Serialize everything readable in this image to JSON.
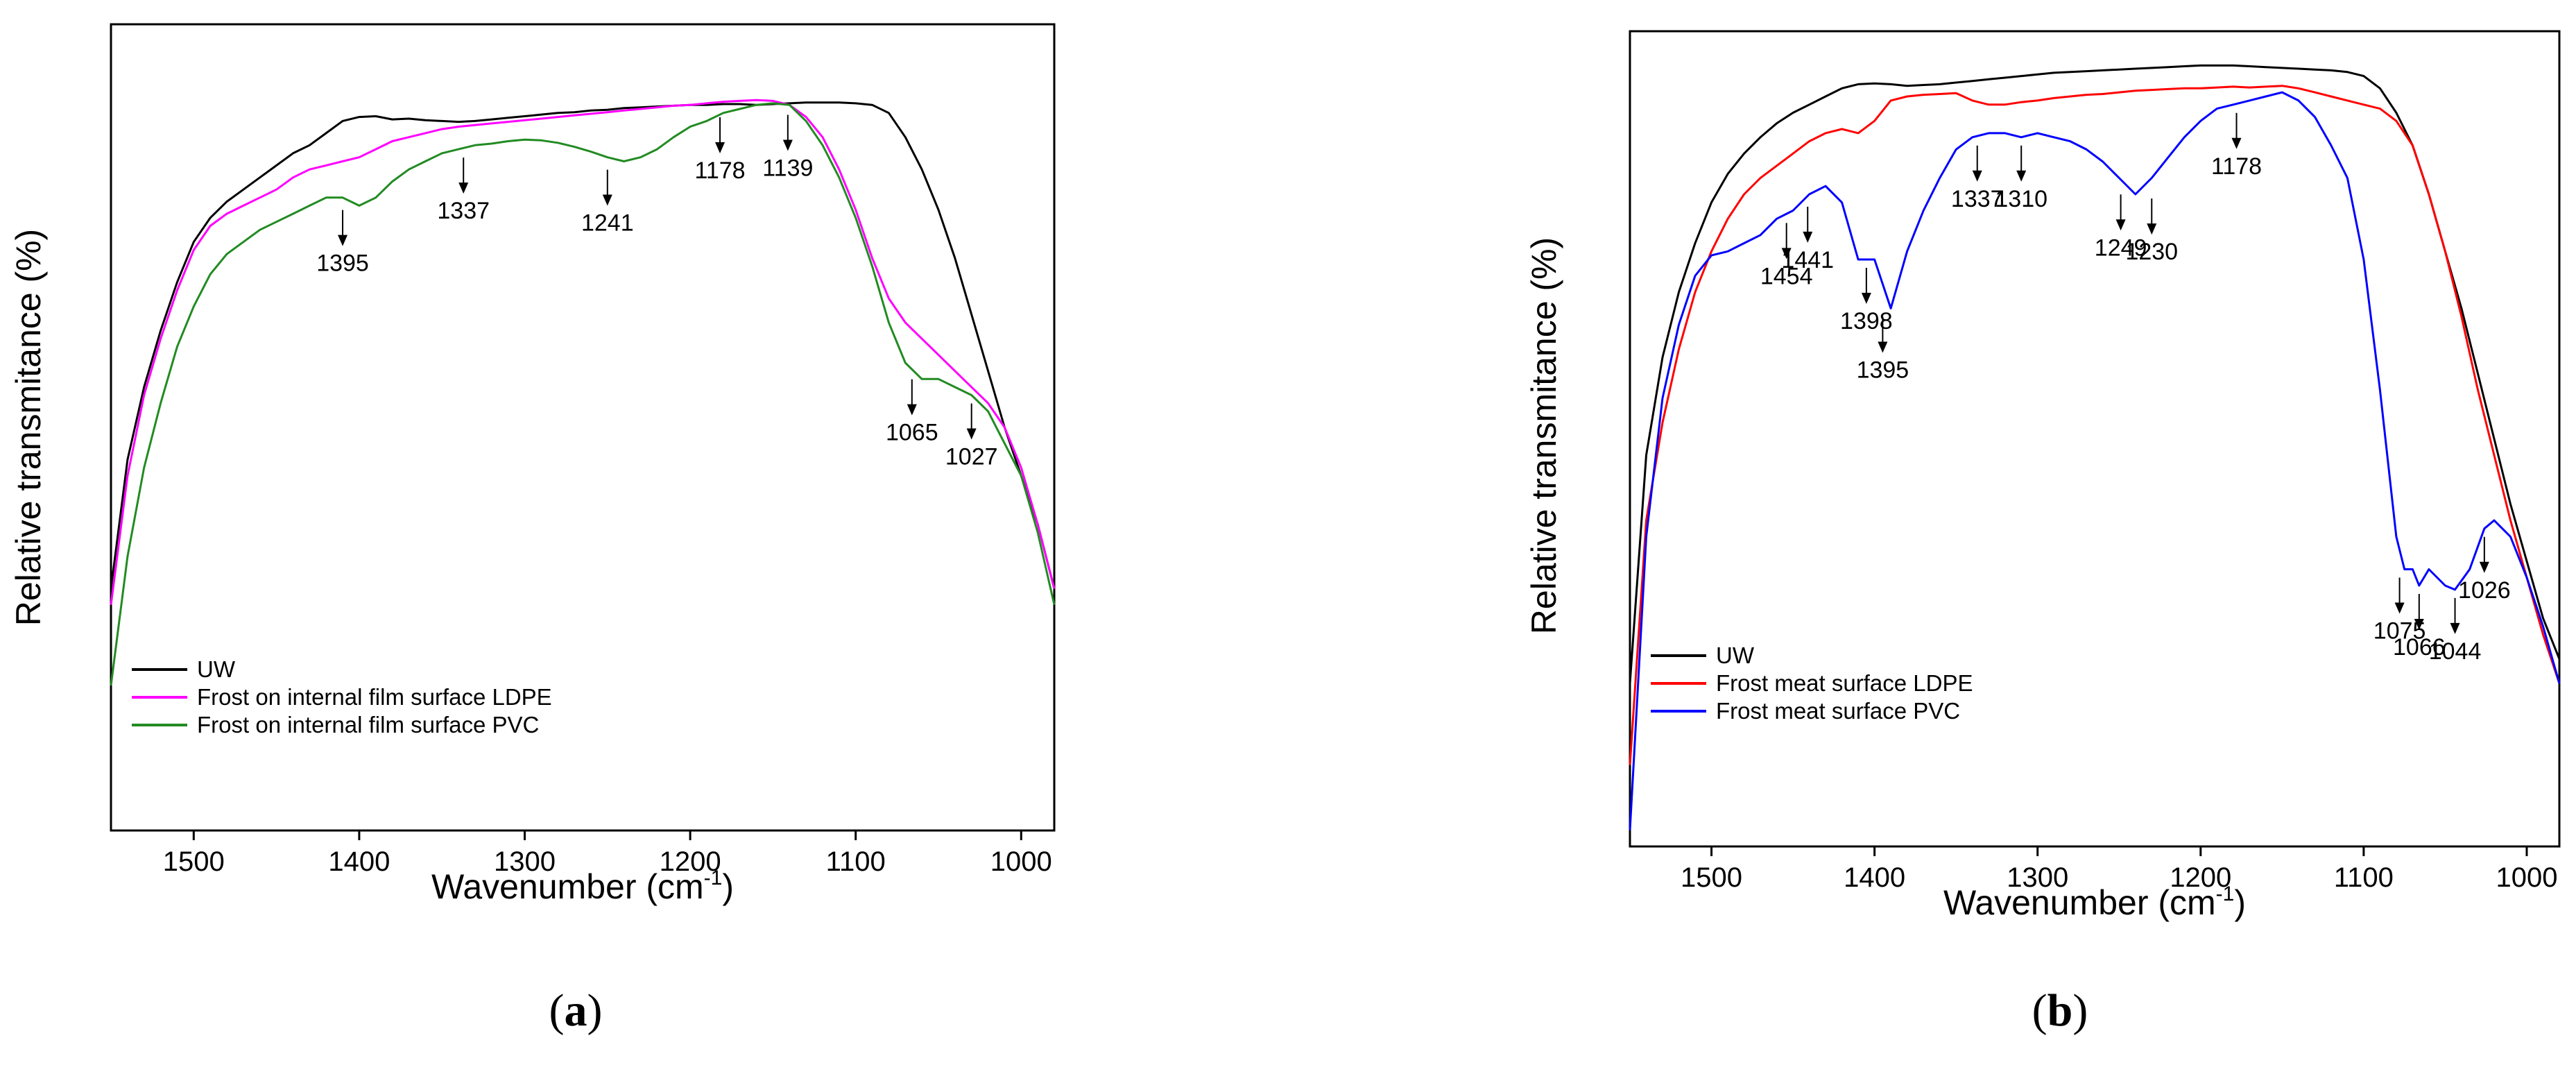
{
  "chart_data": [
    {
      "type": "line",
      "panel": "a",
      "panel_label": {
        "open": "(",
        "letter": "a",
        "close": ")"
      },
      "xlabel": "Wavenumber (cm",
      "xlabel_sup": "-1",
      "xlabel_close": ")",
      "ylabel": "Relative transmitance (%)",
      "xlim": [
        1550,
        980
      ],
      "ylim": [
        0,
        100
      ],
      "xticks": [
        1500,
        1400,
        1300,
        1200,
        1100,
        1000
      ],
      "x_reversed": true,
      "series": [
        {
          "name": "UW",
          "color": "#000000",
          "x": [
            1550,
            1540,
            1530,
            1520,
            1510,
            1500,
            1490,
            1480,
            1470,
            1460,
            1450,
            1440,
            1430,
            1420,
            1410,
            1400,
            1390,
            1380,
            1370,
            1360,
            1350,
            1340,
            1330,
            1320,
            1310,
            1300,
            1290,
            1280,
            1270,
            1260,
            1250,
            1240,
            1230,
            1220,
            1210,
            1200,
            1190,
            1180,
            1170,
            1160,
            1150,
            1140,
            1130,
            1120,
            1110,
            1100,
            1090,
            1080,
            1070,
            1060,
            1050,
            1040,
            1030,
            1020,
            1010,
            1000,
            990,
            980
          ],
          "y": [
            30,
            46,
            55,
            62,
            68,
            73,
            76,
            78,
            79.5,
            81,
            82.5,
            84,
            85,
            86.5,
            88,
            88.5,
            88.6,
            88.2,
            88.3,
            88.1,
            88,
            87.9,
            88,
            88.2,
            88.4,
            88.6,
            88.8,
            89,
            89.1,
            89.3,
            89.4,
            89.6,
            89.7,
            89.8,
            89.9,
            90,
            90,
            90.1,
            90.1,
            90,
            90.1,
            90.2,
            90.3,
            90.3,
            90.3,
            90.2,
            90,
            89,
            86,
            82,
            77,
            71,
            64,
            57,
            50,
            44,
            38,
            30
          ]
        },
        {
          "name": "Frost on internal film surface LDPE",
          "color": "#ff00ff",
          "x": [
            1550,
            1540,
            1530,
            1520,
            1510,
            1500,
            1490,
            1480,
            1470,
            1460,
            1450,
            1440,
            1430,
            1420,
            1410,
            1400,
            1390,
            1380,
            1370,
            1360,
            1350,
            1340,
            1330,
            1320,
            1310,
            1300,
            1290,
            1280,
            1270,
            1260,
            1250,
            1240,
            1230,
            1220,
            1210,
            1200,
            1190,
            1180,
            1170,
            1160,
            1150,
            1140,
            1130,
            1120,
            1110,
            1100,
            1090,
            1080,
            1070,
            1060,
            1050,
            1040,
            1030,
            1020,
            1010,
            1000,
            990,
            980
          ],
          "y": [
            28,
            44,
            54,
            61,
            67,
            72,
            75,
            76.5,
            77.5,
            78.5,
            79.5,
            81,
            82,
            82.5,
            83,
            83.5,
            84.5,
            85.5,
            86,
            86.5,
            87,
            87.3,
            87.5,
            87.7,
            87.9,
            88.1,
            88.3,
            88.5,
            88.7,
            88.9,
            89.1,
            89.3,
            89.5,
            89.7,
            89.9,
            90,
            90.2,
            90.4,
            90.5,
            90.6,
            90.5,
            90,
            88.5,
            86,
            82,
            77,
            71,
            66,
            63,
            61,
            59,
            57,
            55,
            53,
            50,
            45,
            38,
            30
          ]
        },
        {
          "name": "Frost on internal film surface PVC",
          "color": "#228b22",
          "x": [
            1550,
            1540,
            1530,
            1520,
            1510,
            1500,
            1490,
            1480,
            1470,
            1460,
            1450,
            1440,
            1430,
            1420,
            1410,
            1400,
            1390,
            1380,
            1370,
            1360,
            1350,
            1340,
            1330,
            1320,
            1310,
            1300,
            1290,
            1280,
            1270,
            1260,
            1250,
            1240,
            1230,
            1220,
            1210,
            1200,
            1190,
            1180,
            1170,
            1160,
            1150,
            1140,
            1130,
            1120,
            1110,
            1100,
            1090,
            1080,
            1070,
            1060,
            1050,
            1040,
            1030,
            1020,
            1010,
            1000,
            990,
            980
          ],
          "y": [
            18,
            34,
            45,
            53,
            60,
            65,
            69,
            71.5,
            73,
            74.5,
            75.5,
            76.5,
            77.5,
            78.5,
            78.5,
            77.5,
            78.5,
            80.5,
            82,
            83,
            84,
            84.5,
            85,
            85.2,
            85.5,
            85.7,
            85.6,
            85.3,
            84.8,
            84.2,
            83.5,
            83,
            83.5,
            84.5,
            86,
            87.3,
            88,
            89,
            89.5,
            90,
            90.2,
            90,
            88,
            85,
            81,
            76,
            70,
            63,
            58,
            56,
            56,
            55,
            54,
            52,
            48,
            44,
            37,
            28
          ]
        }
      ],
      "annotations": [
        {
          "label": "1395",
          "x": 1410,
          "y": 78
        },
        {
          "label": "1337",
          "x": 1337,
          "y": 84.5
        },
        {
          "label": "1241",
          "x": 1250,
          "y": 83
        },
        {
          "label": "1178",
          "x": 1182,
          "y": 89.5
        },
        {
          "label": "1139",
          "x": 1141,
          "y": 89.8
        },
        {
          "label": "1065",
          "x": 1066,
          "y": 57
        },
        {
          "label": "1027",
          "x": 1030,
          "y": 54
        }
      ],
      "legend_position": "bottom-left"
    },
    {
      "type": "line",
      "panel": "b",
      "panel_label": {
        "open": "(",
        "letter": "b",
        "close": ")"
      },
      "xlabel": "Wavenumber (cm",
      "xlabel_sup": "-1",
      "xlabel_close": ")",
      "ylabel": "Relative transmitance (%)",
      "xlim": [
        1550,
        980
      ],
      "ylim": [
        0,
        100
      ],
      "xticks": [
        1500,
        1400,
        1300,
        1200,
        1100,
        1000
      ],
      "x_reversed": true,
      "series": [
        {
          "name": "UW",
          "color": "#000000",
          "x": [
            1550,
            1540,
            1530,
            1520,
            1510,
            1500,
            1490,
            1480,
            1470,
            1460,
            1450,
            1440,
            1430,
            1420,
            1410,
            1400,
            1390,
            1380,
            1370,
            1360,
            1350,
            1340,
            1330,
            1320,
            1310,
            1300,
            1290,
            1280,
            1270,
            1260,
            1250,
            1240,
            1230,
            1220,
            1210,
            1200,
            1190,
            1180,
            1170,
            1160,
            1150,
            1140,
            1130,
            1120,
            1110,
            1100,
            1090,
            1080,
            1070,
            1060,
            1050,
            1040,
            1030,
            1020,
            1010,
            1000,
            990,
            980
          ],
          "y": [
            20,
            48,
            60,
            68,
            74,
            79,
            82.5,
            85,
            87,
            88.7,
            90,
            91,
            92,
            93,
            93.5,
            93.6,
            93.5,
            93.3,
            93.4,
            93.5,
            93.7,
            93.9,
            94.1,
            94.3,
            94.5,
            94.7,
            94.9,
            95,
            95.1,
            95.2,
            95.3,
            95.4,
            95.5,
            95.6,
            95.7,
            95.8,
            95.8,
            95.8,
            95.7,
            95.6,
            95.5,
            95.4,
            95.3,
            95.2,
            95,
            94.5,
            93,
            90,
            86,
            80,
            73,
            66,
            58,
            50,
            42,
            35,
            28,
            23
          ]
        },
        {
          "name": "Frost meat surface LDPE",
          "color": "#ff0000",
          "x": [
            1550,
            1540,
            1530,
            1520,
            1510,
            1500,
            1490,
            1480,
            1470,
            1460,
            1450,
            1440,
            1430,
            1420,
            1410,
            1400,
            1390,
            1380,
            1370,
            1360,
            1350,
            1340,
            1330,
            1320,
            1310,
            1300,
            1290,
            1280,
            1270,
            1260,
            1250,
            1240,
            1230,
            1220,
            1210,
            1200,
            1190,
            1180,
            1170,
            1160,
            1150,
            1140,
            1130,
            1120,
            1110,
            1100,
            1090,
            1080,
            1070,
            1060,
            1050,
            1040,
            1030,
            1020,
            1010,
            1000,
            990,
            980
          ],
          "y": [
            10,
            40,
            52,
            61,
            68,
            73,
            77,
            80,
            82,
            83.5,
            85,
            86.5,
            87.5,
            88,
            87.5,
            89,
            91.5,
            92,
            92.2,
            92.3,
            92.4,
            91.5,
            91,
            91,
            91.3,
            91.5,
            91.8,
            92,
            92.2,
            92.3,
            92.5,
            92.7,
            92.8,
            92.9,
            93,
            93,
            93.1,
            93.2,
            93.1,
            93.2,
            93.3,
            93,
            92.5,
            92,
            91.5,
            91,
            90.5,
            89,
            86,
            80,
            73,
            65,
            56,
            48,
            40,
            33,
            26,
            20
          ]
        },
        {
          "name": "Frost meat surface PVC",
          "color": "#0000ff",
          "x": [
            1550,
            1540,
            1530,
            1520,
            1510,
            1500,
            1490,
            1480,
            1470,
            1460,
            1450,
            1440,
            1430,
            1420,
            1410,
            1400,
            1390,
            1380,
            1370,
            1360,
            1350,
            1340,
            1330,
            1320,
            1310,
            1300,
            1290,
            1280,
            1270,
            1260,
            1250,
            1240,
            1230,
            1220,
            1210,
            1200,
            1190,
            1180,
            1170,
            1160,
            1150,
            1140,
            1130,
            1120,
            1110,
            1100,
            1090,
            1080,
            1075,
            1070,
            1066,
            1060,
            1050,
            1044,
            1035,
            1026,
            1020,
            1010,
            1000,
            990,
            980
          ],
          "y": [
            2,
            38,
            55,
            64,
            70,
            72.5,
            73,
            74,
            75,
            77,
            78,
            80,
            81,
            79,
            72,
            72,
            66,
            73,
            78,
            82,
            85.5,
            87,
            87.5,
            87.5,
            87,
            87.5,
            87,
            86.5,
            85.5,
            84,
            82,
            80,
            82,
            84.5,
            87,
            89,
            90.5,
            91,
            91.5,
            92,
            92.5,
            91.5,
            89.5,
            86,
            82,
            72,
            56,
            38,
            34,
            34,
            32,
            34,
            32,
            31.5,
            34,
            39,
            40,
            38,
            33,
            27,
            20
          ]
        }
      ],
      "annotations": [
        {
          "label": "1454",
          "x": 1454,
          "y": 77.5
        },
        {
          "label": "1441",
          "x": 1441,
          "y": 79.5
        },
        {
          "label": "1398",
          "x": 1405,
          "y": 72
        },
        {
          "label": "1395",
          "x": 1395,
          "y": 66
        },
        {
          "label": "1337",
          "x": 1337,
          "y": 87
        },
        {
          "label": "1310",
          "x": 1310,
          "y": 87
        },
        {
          "label": "1249",
          "x": 1249,
          "y": 81
        },
        {
          "label": "1230",
          "x": 1230,
          "y": 80.5
        },
        {
          "label": "1178",
          "x": 1178,
          "y": 91
        },
        {
          "label": "1075",
          "x": 1078,
          "y": 34
        },
        {
          "label": "1066",
          "x": 1066,
          "y": 32
        },
        {
          "label": "1044",
          "x": 1044,
          "y": 31.5
        },
        {
          "label": "1026",
          "x": 1026,
          "y": 39
        }
      ],
      "legend_position": "bottom-left"
    }
  ]
}
